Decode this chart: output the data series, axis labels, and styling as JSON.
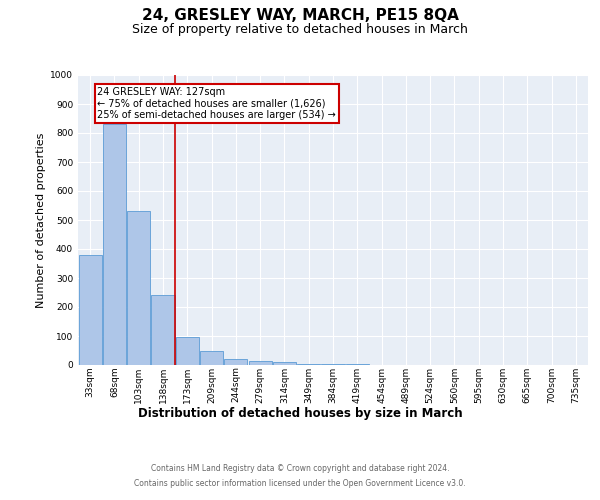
{
  "title": "24, GRESLEY WAY, MARCH, PE15 8QA",
  "subtitle": "Size of property relative to detached houses in March",
  "xlabel": "Distribution of detached houses by size in March",
  "ylabel": "Number of detached properties",
  "footer_line1": "Contains HM Land Registry data © Crown copyright and database right 2024.",
  "footer_line2": "Contains public sector information licensed under the Open Government Licence v3.0.",
  "bar_labels": [
    "33sqm",
    "68sqm",
    "103sqm",
    "138sqm",
    "173sqm",
    "209sqm",
    "244sqm",
    "279sqm",
    "314sqm",
    "349sqm",
    "384sqm",
    "419sqm",
    "454sqm",
    "489sqm",
    "524sqm",
    "560sqm",
    "595sqm",
    "630sqm",
    "665sqm",
    "700sqm",
    "735sqm"
  ],
  "bar_values": [
    380,
    830,
    530,
    240,
    95,
    50,
    22,
    15,
    10,
    5,
    5,
    5,
    0,
    0,
    0,
    0,
    0,
    0,
    0,
    0,
    0
  ],
  "bar_color": "#aec6e8",
  "bar_edge_color": "#5b9bd5",
  "vline_x": 3.5,
  "vline_color": "#cc0000",
  "annotation_title": "24 GRESLEY WAY: 127sqm",
  "annotation_line1": "← 75% of detached houses are smaller (1,626)",
  "annotation_line2": "25% of semi-detached houses are larger (534) →",
  "annotation_box_color": "#cc0000",
  "ylim": [
    0,
    1000
  ],
  "yticks": [
    0,
    100,
    200,
    300,
    400,
    500,
    600,
    700,
    800,
    900,
    1000
  ],
  "plot_bg_color": "#e8eef6",
  "grid_color": "#ffffff",
  "title_fontsize": 11,
  "subtitle_fontsize": 9,
  "xlabel_fontsize": 8.5,
  "ylabel_fontsize": 8,
  "tick_fontsize": 6.5,
  "annotation_fontsize": 7,
  "footer_fontsize": 5.5
}
